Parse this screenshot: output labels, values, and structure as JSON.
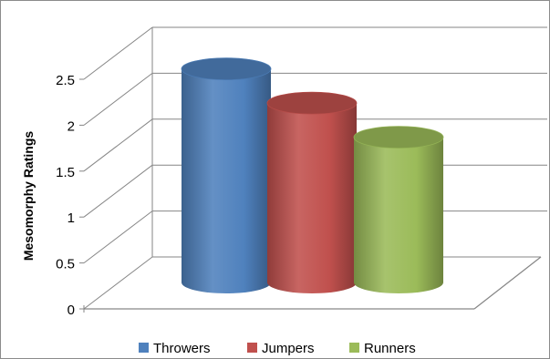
{
  "chart_data": {
    "type": "bar",
    "style": "3d-cylinder",
    "categories": [
      "Throwers",
      "Jumpers",
      "Runners"
    ],
    "values": [
      2.5,
      2.1,
      1.7
    ],
    "colors": [
      "#4f81bd",
      "#c0504d",
      "#9bbb59"
    ],
    "title": "",
    "xlabel": "",
    "ylabel": "Mesomorphy Ratings",
    "ylim": [
      0,
      2.5
    ],
    "yticks": [
      "0",
      "0.5",
      "1",
      "1.5",
      "2",
      "2.5"
    ],
    "grid": true,
    "legend": {
      "placement": "bottom",
      "entries": [
        "Throwers",
        "Jumpers",
        "Runners"
      ]
    }
  }
}
